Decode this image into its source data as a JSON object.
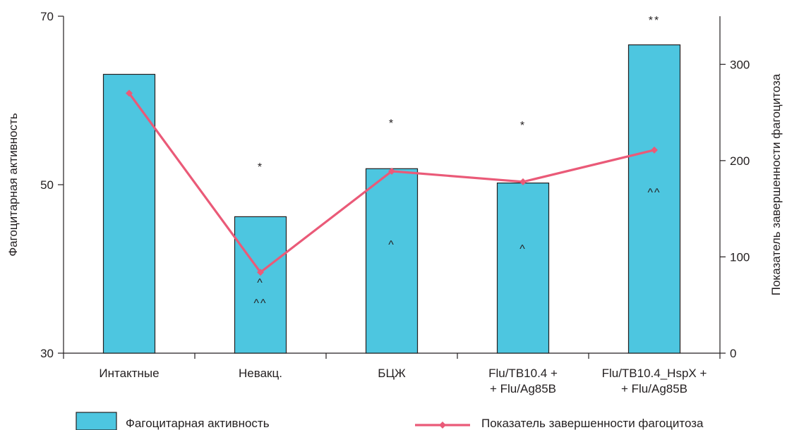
{
  "chart_data": {
    "type": "bar",
    "categories": [
      [
        "Интактные"
      ],
      [
        "Невакц."
      ],
      [
        "БЦЖ"
      ],
      [
        "Flu/TB10.4 +",
        "+ Flu/Ag85B"
      ],
      [
        "Flu/TB10.4_HspX +",
        "+ Flu/Ag85B"
      ]
    ],
    "ylabel": "Фагоцитарная активность",
    "y2label": "Показатель завершенности фагоцитоза",
    "ylim": [
      30,
      70
    ],
    "yticks": [
      30,
      50,
      70
    ],
    "y2lim": [
      0,
      350
    ],
    "y2ticks": [
      0,
      100,
      200,
      300
    ],
    "series": [
      {
        "name": "Фагоцитарная активность",
        "kind": "bar",
        "axis": "left",
        "color": "#4dc6e0",
        "values": [
          63.1,
          46.2,
          51.9,
          50.2,
          66.6
        ]
      },
      {
        "name": "Показатель завершенности фагоцитоза",
        "kind": "line",
        "axis": "right",
        "color": "#ea5a78",
        "marker": "diamond",
        "values": [
          270,
          84,
          189,
          178,
          211
        ]
      }
    ],
    "annotations_above": [
      "",
      "*",
      "*",
      "*",
      "**"
    ],
    "annotations_inside": [
      [],
      [
        "^",
        "^^"
      ],
      [
        "^"
      ],
      [
        "^"
      ],
      [
        "^^"
      ]
    ],
    "legend_placement": "bottom",
    "grid": false
  }
}
